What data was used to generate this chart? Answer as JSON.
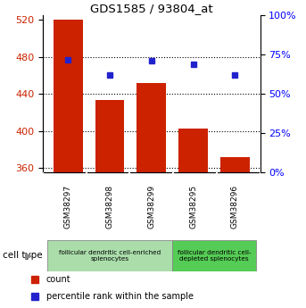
{
  "title": "GDS1585 / 93804_at",
  "samples": [
    "GSM38297",
    "GSM38298",
    "GSM38299",
    "GSM38295",
    "GSM38296"
  ],
  "counts": [
    520,
    433,
    452,
    403,
    372
  ],
  "percentiles": [
    72,
    62,
    71,
    69,
    62
  ],
  "ylim_left": [
    355,
    525
  ],
  "ylim_right": [
    0,
    100
  ],
  "yticks_left": [
    360,
    400,
    440,
    480,
    520
  ],
  "yticks_right": [
    0,
    25,
    50,
    75,
    100
  ],
  "bar_color": "#cc2200",
  "dot_color": "#2222cc",
  "bar_width": 0.7,
  "groups": [
    {
      "label": "follicular dendritic cell-enriched\nsplenocytes",
      "indices": [
        0,
        1,
        2
      ],
      "color": "#aaddaa"
    },
    {
      "label": "follicular dendritic cell-\ndepleted splenocytes",
      "indices": [
        3,
        4
      ],
      "color": "#55cc55"
    }
  ],
  "cell_type_label": "cell type",
  "legend_count_label": "count",
  "legend_pct_label": "percentile rank within the sample",
  "baseline": 355,
  "sample_box_color": "#cccccc",
  "grid_color": "#000000",
  "bg_color": "#ffffff"
}
